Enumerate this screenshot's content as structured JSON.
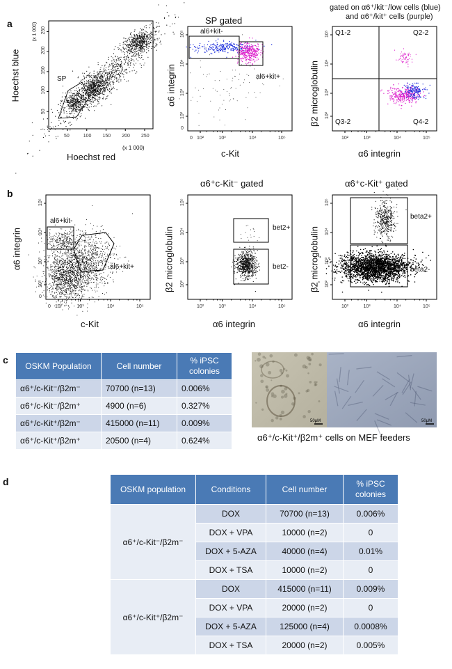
{
  "panel_a": {
    "letter": "a",
    "plot1": {
      "ylabel": "Hoechst blue",
      "xlabel": "Hoechst red",
      "scale_note_y": "(x 1 000)",
      "scale_note_x": "(x 1 000)",
      "yticks": [
        "50",
        "100",
        "150",
        "200",
        "250"
      ],
      "xticks": [
        "50",
        "100",
        "150",
        "200",
        "250"
      ],
      "gate": "SP"
    },
    "plot2": {
      "title": "SP gated",
      "ylabel": "α6 integrin",
      "xlabel": "c-Kit",
      "gate_neg": "al6+kit-",
      "gate_pos": "al6+kit+"
    },
    "plot3": {
      "title_line1": "gated on α6⁺/kit⁻/low cells (blue)",
      "title_line2": "and α6⁺/kit⁺ cells (purple)",
      "ylabel": "β2 microglobulin",
      "xlabel": "α6 integrin",
      "q1": "Q1-2",
      "q2": "Q2-2",
      "q3": "Q3-2",
      "q4": "Q4-2"
    }
  },
  "panel_b": {
    "letter": "b",
    "plot1": {
      "ylabel": "α6 integrin",
      "xlabel": "c-Kit",
      "gate_neg": "al6+kit-",
      "gate_pos": "al6+kit+"
    },
    "plot2": {
      "title": "α6⁺c-Kit⁻ gated",
      "ylabel": "β2 microglobulin",
      "xlabel": "α6 integrin",
      "gate_pos": "bet2+",
      "gate_neg": "bet2-"
    },
    "plot3": {
      "title": "α6⁺c-Kit⁺ gated",
      "ylabel": "β2 microglobulin",
      "xlabel": "α6 integrin",
      "gate_pos": "beta2+",
      "gate_neg": "beta2-"
    }
  },
  "log_ticks": {
    "p2": "10²",
    "p3": "10³",
    "p4": "10⁴",
    "p5": "10⁵",
    "z": "0"
  },
  "panel_c": {
    "letter": "c",
    "headers": [
      "OSKM Population",
      "Cell number",
      "% iPSC colonies"
    ],
    "rows": [
      [
        "α6⁺/c-Kit⁻/β2m⁻",
        "70700 (n=13)",
        "0.006%"
      ],
      [
        "α6⁺/c-Kit⁻/β2m⁺",
        "4900 (n=6)",
        "0.327%"
      ],
      [
        "α6⁺/c-Kit⁺/β2m⁻",
        "415000 (n=11)",
        "0.009%"
      ],
      [
        "α6⁺/c-Kit⁺/β2m⁺",
        "20500 (n=4)",
        "0.624%"
      ]
    ],
    "scale_bar_left": "50μM",
    "scale_bar_right": "50μM",
    "caption": "α6⁺/c-Kit⁺/β2m⁺ cells on MEF feeders"
  },
  "panel_d": {
    "letter": "d",
    "headers": [
      "OSKM population",
      "Conditions",
      "Cell number",
      "% iPSC colonies"
    ],
    "groups": [
      {
        "population": "α6⁺/c-Kit⁻/β2m⁻",
        "rows": [
          [
            "DOX",
            "70700 (n=13)",
            "0.006%"
          ],
          [
            "DOX + VPA",
            "10000 (n=2)",
            "0"
          ],
          [
            "DOX + 5-AZA",
            "40000 (n=4)",
            "0.01%"
          ],
          [
            "DOX + TSA",
            "10000 (n=2)",
            "0"
          ]
        ]
      },
      {
        "population": "α6⁺/c-Kit⁺/β2m⁻",
        "rows": [
          [
            "DOX",
            "415000 (n=11)",
            "0.009%"
          ],
          [
            "DOX + VPA",
            "20000 (n=2)",
            "0"
          ],
          [
            "DOX + 5-AZA",
            "125000 (n=4)",
            "0.0008%"
          ],
          [
            "DOX + TSA",
            "20000 (n=2)",
            "0.005%"
          ]
        ]
      }
    ]
  },
  "colors": {
    "header": "#4a7ab5",
    "row_dark": "#ccd6e8",
    "row_light": "#e8edf5",
    "blue_dots": "#2233dd",
    "purple_dots": "#dd22cc"
  }
}
